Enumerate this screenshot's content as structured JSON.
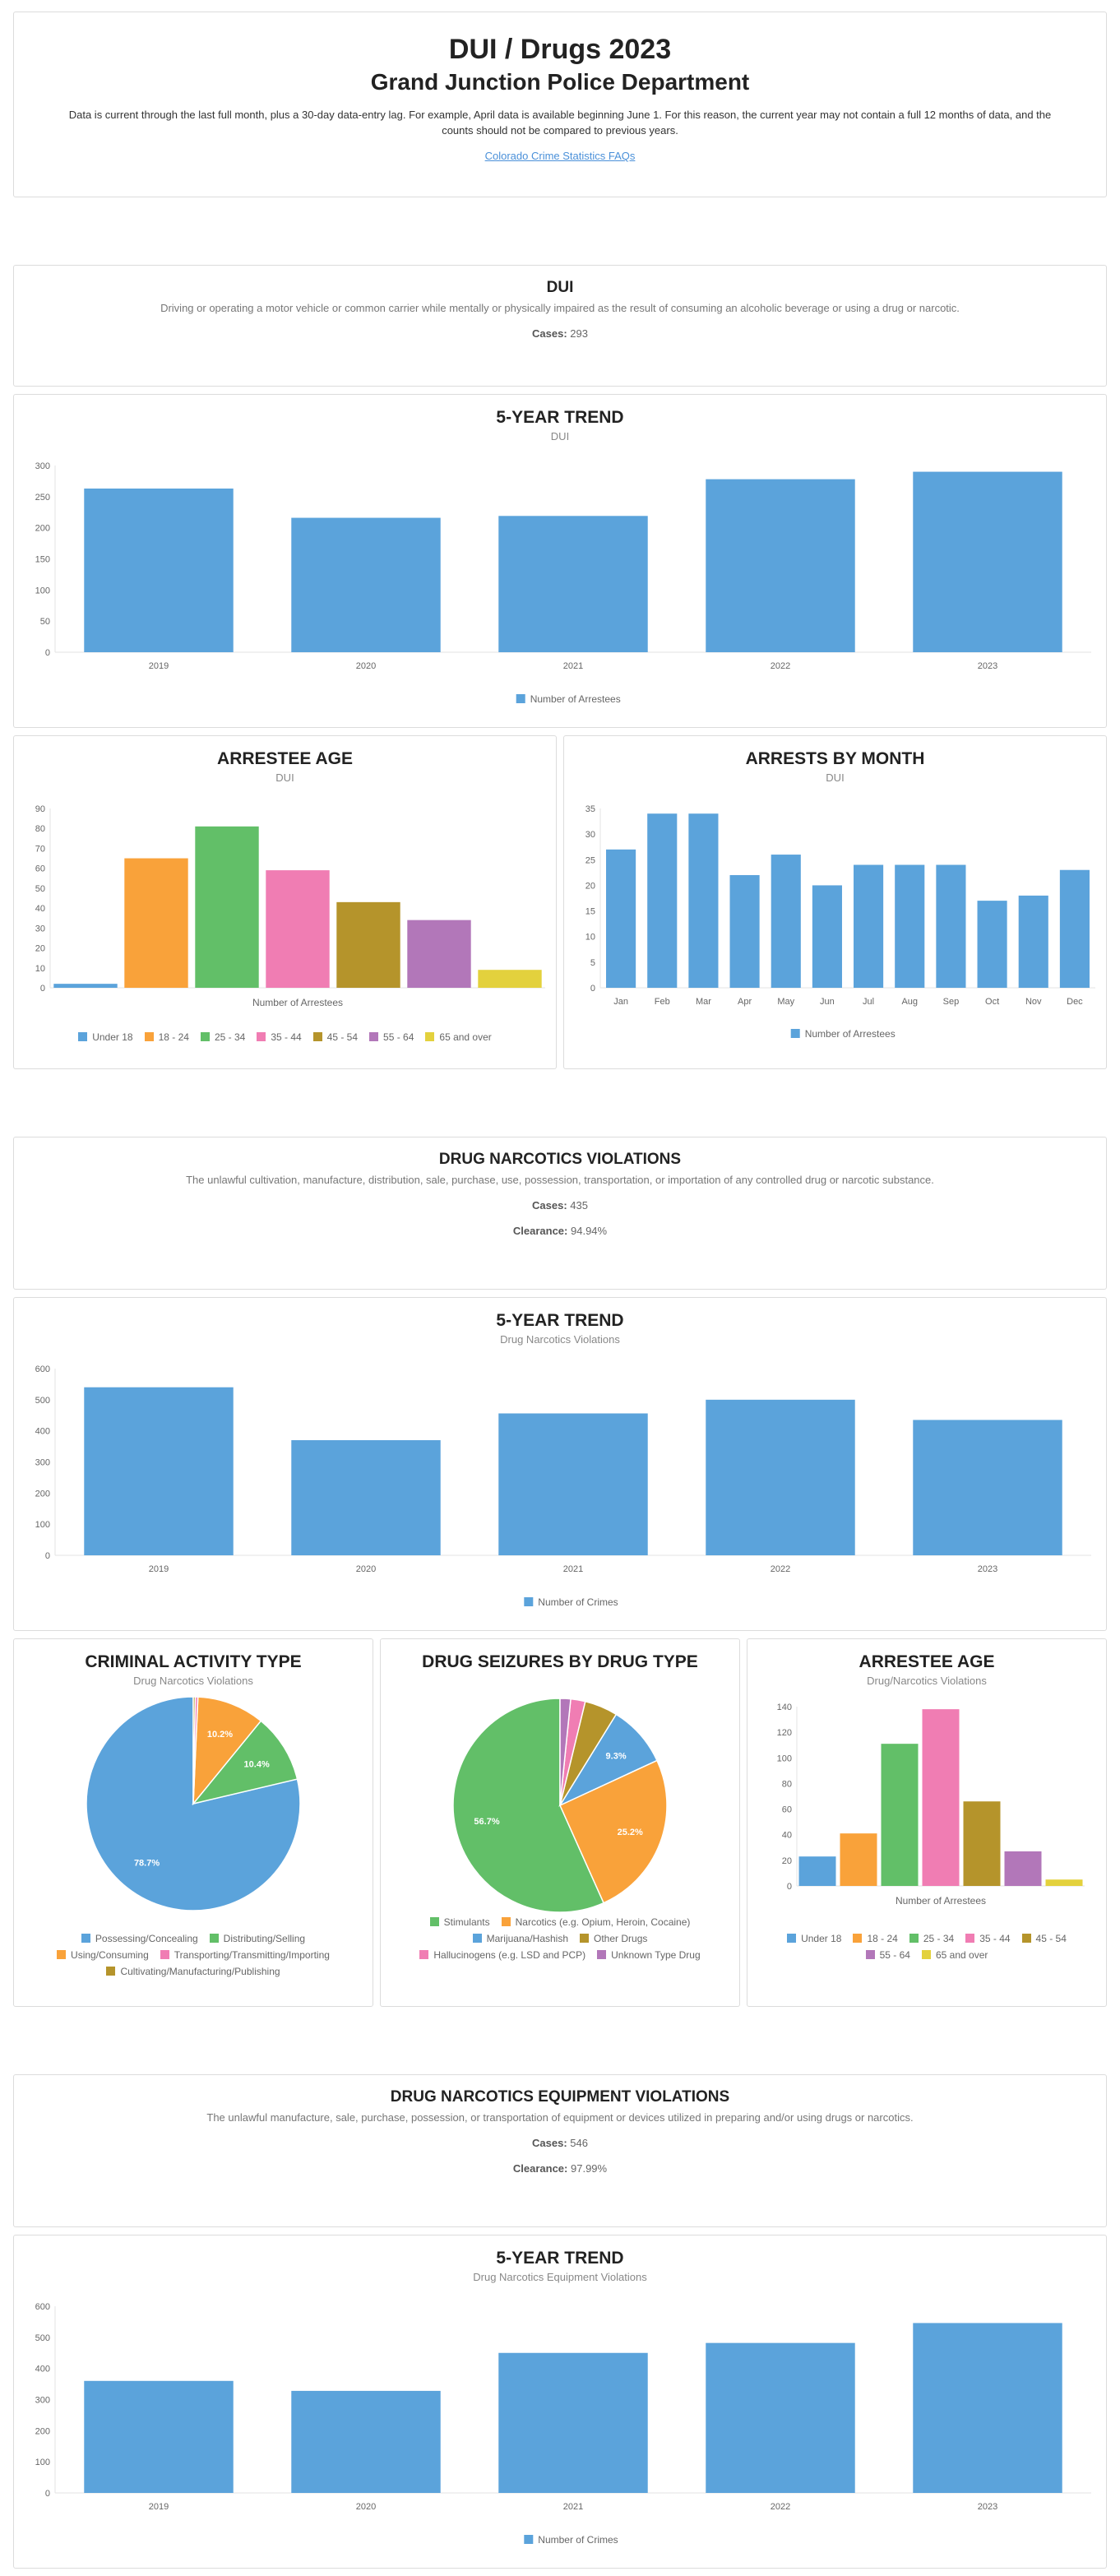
{
  "header": {
    "title": "DUI / Drugs 2023",
    "agency": "Grand Junction Police Department",
    "note": "Data is current through the last full month, plus a 30-day data-entry lag. For example, April data is available beginning June 1. For this reason, the current year may not contain a full 12 months of data, and the counts should not be compared to previous years.",
    "faq_link": "Colorado Crime Statistics FAQs"
  },
  "colors": {
    "blue": "#5ba3db",
    "orange": "#f9a23a",
    "green": "#62bf68",
    "pink": "#f07db3",
    "olive": "#b5942b",
    "purple": "#b277b9",
    "yellow": "#e3d13d"
  },
  "dui": {
    "title": "DUI",
    "description": "Driving or operating a motor vehicle or common carrier while mentally or physically impaired as the result of consuming an alcoholic beverage or using a drug or narcotic.",
    "cases_label": "Cases:",
    "cases_value": "293"
  },
  "narcotics": {
    "title": "DRUG NARCOTICS VIOLATIONS",
    "description": "The unlawful cultivation, manufacture, distribution, sale, purchase, use, possession, transportation, or importation of any controlled drug or narcotic substance.",
    "cases_label": "Cases:",
    "cases_value": "435",
    "clearance_label": "Clearance:",
    "clearance_value": "94.94%"
  },
  "equipment": {
    "title": "DRUG NARCOTICS EQUIPMENT VIOLATIONS",
    "description": "The unlawful manufacture, sale, purchase, possession, or transportation of equipment or devices utilized in preparing and/or using drugs or narcotics.",
    "cases_label": "Cases:",
    "cases_value": "546",
    "clearance_label": "Clearance:",
    "clearance_value": "97.99%"
  },
  "charts": {
    "dui_trend_title": "5-YEAR TREND",
    "dui_trend_sub": "DUI",
    "dui_age_title": "ARRESTEE AGE",
    "dui_age_sub": "DUI",
    "dui_month_title": "ARRESTS BY MONTH",
    "dui_month_sub": "DUI",
    "narc_trend_title": "5-YEAR TREND",
    "narc_trend_sub": "Drug Narcotics Violations",
    "activity_title": "CRIMINAL ACTIVITY TYPE",
    "activity_sub": "Drug Narcotics Violations",
    "seizure_title": "DRUG SEIZURES BY DRUG TYPE",
    "narc_age_title": "ARRESTEE AGE",
    "narc_age_sub": "Drug/Narcotics Violations",
    "equip_trend_title": "5-YEAR TREND",
    "equip_trend_sub": "Drug Narcotics Equipment Violations"
  },
  "chart_data": [
    {
      "id": "dui_trend",
      "type": "bar",
      "categories": [
        "2019",
        "2020",
        "2021",
        "2022",
        "2023"
      ],
      "series": [
        {
          "name": "Number of Arrestees",
          "values": [
            263,
            216,
            219,
            278,
            290
          ]
        }
      ],
      "ylim": [
        0,
        300
      ],
      "yticks": [
        0,
        50,
        100,
        150,
        200,
        250,
        300
      ]
    },
    {
      "id": "dui_age",
      "type": "bar",
      "categories": [
        "Under 18",
        "18 - 24",
        "25 - 34",
        "35 - 44",
        "45 - 54",
        "55 - 64",
        "65 and over"
      ],
      "values": [
        2,
        65,
        81,
        59,
        43,
        34,
        9
      ],
      "xlabel": "Number of Arrestees",
      "ylim": [
        0,
        90
      ],
      "yticks": [
        0,
        10,
        20,
        30,
        40,
        50,
        60,
        70,
        80,
        90
      ]
    },
    {
      "id": "dui_month",
      "type": "bar",
      "categories": [
        "Jan",
        "Feb",
        "Mar",
        "Apr",
        "May",
        "Jun",
        "Jul",
        "Aug",
        "Sep",
        "Oct",
        "Nov",
        "Dec"
      ],
      "series": [
        {
          "name": "Number of Arrestees",
          "values": [
            27,
            34,
            34,
            22,
            26,
            20,
            24,
            24,
            24,
            17,
            18,
            23
          ]
        }
      ],
      "ylim": [
        0,
        35
      ],
      "yticks": [
        0,
        5,
        10,
        15,
        20,
        25,
        30,
        35
      ]
    },
    {
      "id": "narc_trend",
      "type": "bar",
      "categories": [
        "2019",
        "2020",
        "2021",
        "2022",
        "2023"
      ],
      "series": [
        {
          "name": "Number of Crimes",
          "values": [
            540,
            370,
            456,
            500,
            435
          ]
        }
      ],
      "ylim": [
        0,
        600
      ],
      "yticks": [
        0,
        100,
        200,
        300,
        400,
        500,
        600
      ]
    },
    {
      "id": "activity",
      "type": "pie",
      "labels": [
        "Possessing/Concealing",
        "Distributing/Selling",
        "Using/Consuming",
        "Transporting/Transmitting/Importing",
        "Cultivating/Manufacturing/Publishing"
      ],
      "values": [
        78.7,
        10.4,
        10.2,
        0.4,
        0.3
      ],
      "value_labels": [
        "78.7%",
        "10.4%",
        "10.2%",
        "",
        ""
      ]
    },
    {
      "id": "seizure",
      "type": "pie",
      "labels": [
        "Stimulants",
        "Narcotics (e.g. Opium, Heroin, Cocaine)",
        "Marijuana/Hashish",
        "Other Drugs",
        "Hallucinogens (e.g. LSD and PCP)",
        "Unknown Type Drug"
      ],
      "values": [
        56.7,
        25.2,
        9.3,
        5.0,
        2.2,
        1.6
      ],
      "value_labels": [
        "56.7%",
        "25.2%",
        "9.3%",
        "",
        "",
        ""
      ]
    },
    {
      "id": "narc_age",
      "type": "bar",
      "categories": [
        "Under 18",
        "18 - 24",
        "25 - 34",
        "35 - 44",
        "45 - 54",
        "55 - 64",
        "65 and over"
      ],
      "values": [
        23,
        41,
        111,
        138,
        66,
        27,
        5
      ],
      "xlabel": "Number of Arrestees",
      "ylim": [
        0,
        140
      ],
      "yticks": [
        0,
        20,
        40,
        60,
        80,
        100,
        120,
        140
      ]
    },
    {
      "id": "equip_trend",
      "type": "bar",
      "categories": [
        "2019",
        "2020",
        "2021",
        "2022",
        "2023"
      ],
      "series": [
        {
          "name": "Number of Crimes",
          "values": [
            360,
            328,
            450,
            482,
            546
          ]
        }
      ],
      "ylim": [
        0,
        600
      ],
      "yticks": [
        0,
        100,
        200,
        300,
        400,
        500,
        600
      ]
    }
  ]
}
